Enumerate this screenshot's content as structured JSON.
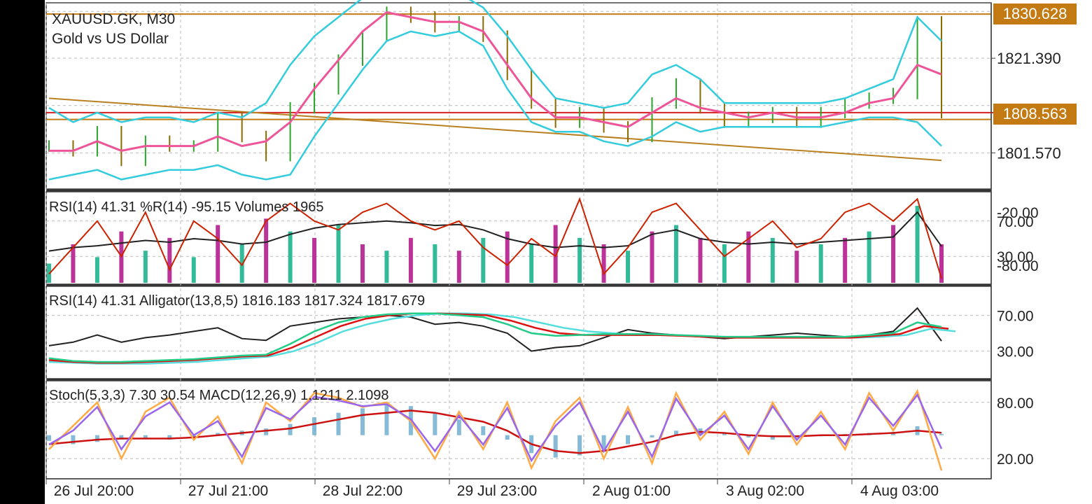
{
  "symbol": "XAUUSD.GK, M30",
  "description": "Gold vs US Dollar",
  "colors": {
    "bb": "#33ccdd",
    "ma": "#ee5599",
    "candle_up": "#2aa52a",
    "candle_down": "#8b6a00",
    "hline": "#c47a12",
    "bid_line": "#d42020",
    "rsi": "#222222",
    "wpr": "#cc2200",
    "vol_up": "#33bb99",
    "vol_down": "#bb3399",
    "jaw": "#55dddd",
    "teeth": "#dd1111",
    "lips": "#22cc88",
    "stoch_main": "#ffaa44",
    "stoch_signal": "#9966ee",
    "macd_hist": "#66aacc",
    "macd_signal": "#cc1111"
  },
  "panels": {
    "main": {
      "price_ticks": [
        "1821.390",
        "1801.570"
      ],
      "tags": [
        "1830.628",
        "1808.563"
      ]
    },
    "sub1": {
      "label": "RSI(14) 41.31 %R(14) -95.15 Volumes 1965",
      "ticks": [
        "-20.00",
        "70.00",
        "30.00",
        "-80.00"
      ]
    },
    "sub2": {
      "label": "RSI(14) 41.31 Alligator(13,8,5) 1816.183 1817.324 1817.679",
      "ticks": [
        "70.00",
        "30.00"
      ]
    },
    "sub3": {
      "label": "Stoch(5,3,3) 7.30 30.54 MACD(12,26,9) 1.1211 2.1098",
      "ticks": [
        "80.00",
        "20.00"
      ]
    }
  },
  "time_axis": [
    "26 Jul 20:00",
    "27 Jul 21:00",
    "28 Jul 22:00",
    "29 Jul 23:00",
    "2 Aug 01:00",
    "3 Aug 02:00",
    "4 Aug 03:00"
  ],
  "chart_data": [
    {
      "type": "candlestick",
      "title": "XAUUSD.GK, M30",
      "subtitle": "Gold vs US Dollar",
      "x": [
        "26 Jul 20:00",
        "27 Jul 21:00",
        "28 Jul 22:00",
        "29 Jul 23:00",
        "2 Aug 01:00",
        "3 Aug 02:00",
        "4 Aug 03:00"
      ],
      "ylim": [
        1794,
        1833
      ],
      "y_ticks": [
        1821.39,
        1801.57
      ],
      "price_close": [
        1803,
        1802,
        1806,
        1800,
        1804,
        1803,
        1803,
        1809,
        1805,
        1801,
        1811,
        1815,
        1821,
        1826,
        1831,
        1830,
        1828,
        1829,
        1826,
        1818,
        1812,
        1808,
        1810,
        1807,
        1805,
        1812,
        1816,
        1811,
        1808,
        1809,
        1810,
        1808,
        1810,
        1812,
        1813,
        1814,
        1829,
        1810
      ],
      "bb_upper": [
        1811,
        1808,
        1810,
        1808,
        1809,
        1809,
        1808,
        1810,
        1809,
        1812,
        1820,
        1826,
        1830,
        1834,
        1836,
        1835,
        1834,
        1835,
        1832,
        1826,
        1819,
        1813,
        1812,
        1811,
        1812,
        1818,
        1820,
        1817,
        1812,
        1812,
        1812,
        1812,
        1812,
        1813,
        1815,
        1817,
        1830,
        1825
      ],
      "bb_lower": [
        1796,
        1797,
        1798,
        1796,
        1797,
        1798,
        1798,
        1799,
        1797,
        1796,
        1797,
        1805,
        1812,
        1819,
        1825,
        1827,
        1826,
        1827,
        1824,
        1815,
        1808,
        1806,
        1806,
        1804,
        1803,
        1805,
        1808,
        1806,
        1807,
        1807,
        1807,
        1807,
        1807,
        1808,
        1809,
        1809,
        1808,
        1803
      ],
      "ma": [
        1802,
        1802,
        1804,
        1802,
        1803,
        1803,
        1803,
        1805,
        1803,
        1804,
        1808,
        1815,
        1821,
        1827,
        1831,
        1830,
        1829,
        1829,
        1827,
        1820,
        1813,
        1809,
        1809,
        1808,
        1807,
        1810,
        1813,
        1811,
        1810,
        1809,
        1810,
        1809,
        1809,
        1810,
        1812,
        1813,
        1820,
        1818
      ],
      "trendline": {
        "from": [
          0,
          1813
        ],
        "to": [
          37,
          1800
        ]
      },
      "horizontal_lines": [
        1830.628,
        1808.563
      ],
      "bid_line": 1810
    },
    {
      "type": "line",
      "title": "RSI(14) 41.31 %R(14) -95.15 Volumes 1965",
      "ylim": [
        0,
        100
      ],
      "rsi": [
        36,
        40,
        42,
        45,
        48,
        46,
        50,
        48,
        44,
        46,
        55,
        62,
        66,
        68,
        70,
        68,
        65,
        66,
        60,
        50,
        44,
        40,
        42,
        40,
        42,
        55,
        60,
        50,
        46,
        44,
        46,
        44,
        46,
        48,
        50,
        52,
        80,
        41.31
      ],
      "williams_r": [
        -90,
        -60,
        -30,
        -70,
        -20,
        -85,
        -30,
        -50,
        -80,
        -30,
        -10,
        -30,
        -40,
        -20,
        -10,
        -30,
        -40,
        -30,
        -60,
        -80,
        -50,
        -70,
        -5,
        -90,
        -60,
        -20,
        -10,
        -40,
        -70,
        -50,
        -30,
        -60,
        -50,
        -20,
        -10,
        -30,
        -5,
        -95.15
      ],
      "volumes": [
        30,
        60,
        40,
        80,
        50,
        70,
        40,
        90,
        60,
        100,
        80,
        70,
        90,
        60,
        50,
        70,
        60,
        50,
        70,
        80,
        60,
        90,
        70,
        60,
        50,
        80,
        90,
        70,
        60,
        80,
        70,
        50,
        60,
        70,
        80,
        90,
        120,
        60
      ]
    },
    {
      "type": "line",
      "title": "RSI(14) 41.31 Alligator(13,8,5) 1816.183 1817.324 1817.679",
      "ylim": [
        0,
        100
      ],
      "rsi": [
        36,
        40,
        48,
        40,
        45,
        48,
        52,
        56,
        44,
        42,
        58,
        62,
        66,
        68,
        70,
        68,
        60,
        62,
        58,
        50,
        30,
        34,
        36,
        45,
        54,
        50,
        48,
        46,
        44,
        46,
        48,
        50,
        48,
        46,
        48,
        52,
        78,
        41.31
      ],
      "alligator_jaw": [
        18,
        17,
        16,
        16,
        16,
        17,
        18,
        20,
        22,
        24,
        30,
        40,
        52,
        60,
        66,
        70,
        72,
        72,
        71,
        68,
        62,
        56,
        52,
        50,
        48,
        48,
        47,
        46,
        45,
        45,
        45,
        45,
        45,
        45,
        46,
        48,
        55,
        52
      ],
      "alligator_teeth": [
        20,
        18,
        17,
        17,
        18,
        19,
        20,
        22,
        24,
        25,
        34,
        46,
        58,
        66,
        70,
        72,
        72,
        71,
        70,
        64,
        56,
        50,
        48,
        48,
        48,
        48,
        47,
        46,
        45,
        45,
        45,
        45,
        45,
        45,
        47,
        49,
        58,
        55
      ],
      "alligator_lips": [
        22,
        19,
        18,
        18,
        19,
        20,
        21,
        23,
        25,
        26,
        38,
        52,
        62,
        68,
        71,
        72,
        72,
        70,
        68,
        60,
        50,
        47,
        48,
        49,
        49,
        49,
        48,
        47,
        46,
        46,
        46,
        46,
        46,
        46,
        48,
        50,
        62,
        57
      ]
    },
    {
      "type": "line",
      "title": "Stoch(5,3,3) 7.30 30.54 MACD(12,26,9) 1.1211 2.1098",
      "ylim": [
        0,
        100
      ],
      "stoch_main": [
        30,
        55,
        80,
        20,
        70,
        85,
        40,
        65,
        15,
        80,
        60,
        90,
        85,
        75,
        80,
        60,
        20,
        70,
        30,
        80,
        10,
        60,
        85,
        20,
        75,
        15,
        90,
        40,
        70,
        25,
        80,
        35,
        70,
        30,
        90,
        50,
        92,
        7.3
      ],
      "stoch_signal": [
        35,
        50,
        75,
        30,
        65,
        80,
        45,
        60,
        22,
        74,
        62,
        86,
        82,
        76,
        78,
        62,
        28,
        66,
        35,
        74,
        18,
        55,
        80,
        28,
        70,
        22,
        84,
        45,
        66,
        30,
        76,
        40,
        66,
        35,
        85,
        55,
        88,
        30.54
      ],
      "macd_hist": [
        -5,
        -8,
        -6,
        -4,
        -3,
        -4,
        -2,
        2,
        4,
        6,
        10,
        16,
        20,
        24,
        28,
        26,
        20,
        14,
        8,
        -4,
        -16,
        -20,
        -18,
        -12,
        -8,
        -2,
        4,
        6,
        2,
        -2,
        -4,
        -2,
        -1,
        1,
        2,
        3,
        8,
        1.1211
      ],
      "macd_signal": [
        -8,
        -6,
        -4,
        -3,
        -3,
        -3,
        -2,
        0,
        2,
        4,
        6,
        10,
        14,
        18,
        20,
        22,
        20,
        16,
        12,
        4,
        -8,
        -14,
        -16,
        -14,
        -10,
        -6,
        0,
        3,
        2,
        0,
        -1,
        -1,
        0,
        0,
        1,
        2,
        4,
        2.1098
      ]
    }
  ]
}
